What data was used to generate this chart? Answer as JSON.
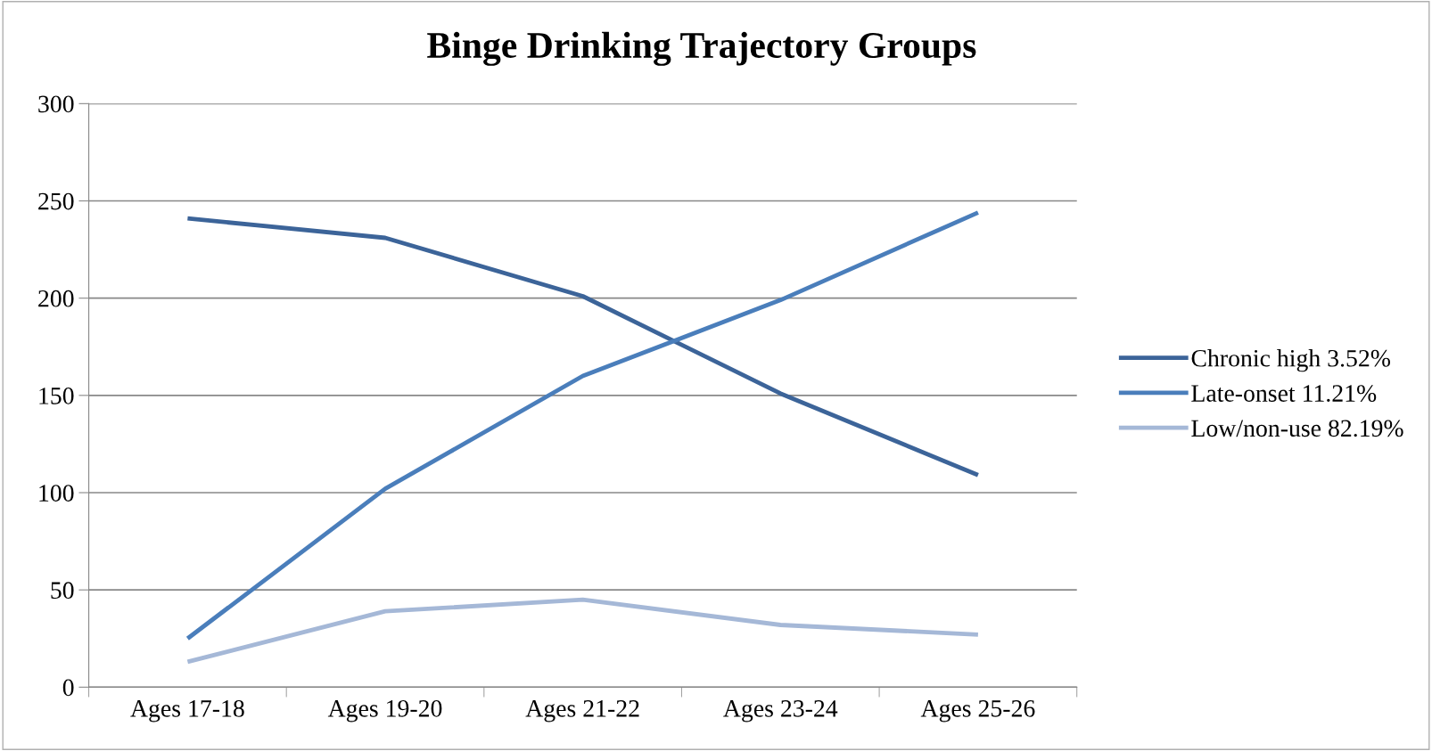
{
  "chart_data": {
    "type": "line",
    "title": "Binge Drinking Trajectory Groups",
    "categories": [
      "Ages 17-18",
      "Ages 19-20",
      "Ages 21-22",
      "Ages 23-24",
      "Ages 25-26"
    ],
    "series": [
      {
        "name": "Chronic high 3.52%",
        "color": "#3c6499",
        "values": [
          241,
          231,
          201,
          151,
          109
        ]
      },
      {
        "name": "Late-onset 11.21%",
        "color": "#4a7ebb",
        "values": [
          25,
          102,
          160,
          199,
          244
        ]
      },
      {
        "name": "Low/non-use 82.19%",
        "color": "#a5b8d7",
        "values": [
          13,
          39,
          45,
          32,
          27
        ]
      }
    ],
    "ylim": [
      0,
      300
    ],
    "yticks": [
      0,
      50,
      100,
      150,
      200,
      250,
      300
    ],
    "grid": "y",
    "legend": "right",
    "marker": "none",
    "line_style": "solid"
  }
}
